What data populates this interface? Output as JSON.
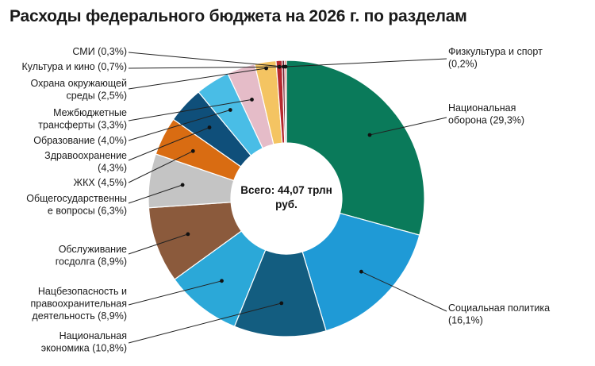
{
  "chart_data": {
    "type": "pie",
    "title": "Расходы федерального бюджета на 2026 г. по разделам",
    "center_label": [
      "Всего: 44,07 трлн",
      "руб."
    ],
    "total": "44,07 трлн руб.",
    "slices": [
      {
        "name": "Национальная оборона",
        "value": 29.3,
        "label_lines": [
          "Национальная",
          "оборона (29,3%)"
        ],
        "color": "#0a7a5a"
      },
      {
        "name": "Социальная политика",
        "value": 16.1,
        "label_lines": [
          "Социальная политика",
          "(16,1%)"
        ],
        "color": "#1f9ad6"
      },
      {
        "name": "Национальная экономика",
        "value": 10.8,
        "label_lines": [
          "Национальная",
          "экономика (10,8%)"
        ],
        "color": "#135d80"
      },
      {
        "name": "Нацбезопасность и правоохранительная деятельность",
        "value": 8.9,
        "label_lines": [
          "Нацбезопасность и",
          "правоохранительная",
          "деятельность (8,9%)"
        ],
        "color": "#2ba8d8"
      },
      {
        "name": "Обслуживание госдолга",
        "value": 8.9,
        "label_lines": [
          "Обслуживание",
          "госдолга (8,9%)"
        ],
        "color": "#8b5a3c"
      },
      {
        "name": "Общегосударственные вопросы",
        "value": 6.3,
        "label_lines": [
          "Общегосударственны",
          "е вопросы (6,3%)"
        ],
        "color": "#c4c4c4"
      },
      {
        "name": "ЖКХ",
        "value": 4.5,
        "label_lines": [
          "ЖКХ (4,5%)"
        ],
        "color": "#d96c12"
      },
      {
        "name": "Здравоохранение",
        "value": 4.3,
        "label_lines": [
          "Здравоохранение",
          "(4,3%)"
        ],
        "color": "#0f4f7a"
      },
      {
        "name": "Образование",
        "value": 4.0,
        "label_lines": [
          "Образование (4,0%)"
        ],
        "color": "#49bde6"
      },
      {
        "name": "Межбюджетные трансферты",
        "value": 3.3,
        "label_lines": [
          "Межбюджетные",
          "трансферты (3,3%)"
        ],
        "color": "#e5bcc8"
      },
      {
        "name": "Охрана окружающей среды",
        "value": 2.5,
        "label_lines": [
          "Охрана окружающей",
          "среды (2,5%)"
        ],
        "color": "#f4c462"
      },
      {
        "name": "Культура и кино",
        "value": 0.7,
        "label_lines": [
          "Культура и кино (0,7%)"
        ],
        "color": "#b7282e"
      },
      {
        "name": "СМИ",
        "value": 0.3,
        "label_lines": [
          "СМИ (0,3%)"
        ],
        "color": "#6b2030"
      },
      {
        "name": "Физкультура и спорт",
        "value": 0.2,
        "label_lines": [
          "Физкультура и спорт",
          "(0,2%)"
        ],
        "color": "#e84a3c"
      }
    ]
  }
}
